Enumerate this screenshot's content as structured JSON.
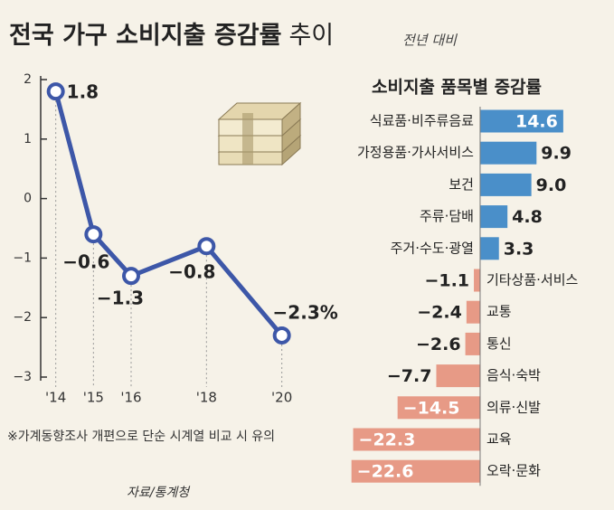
{
  "header": {
    "title": [
      "전국 가구 소비지출 증감률",
      "추이"
    ],
    "subtitle": "전년 대비"
  },
  "note": "※가계동향조사 개편으로 단순 시계열 비교 시 유의",
  "source": "자료/통계청",
  "chart_data": [
    {
      "type": "line",
      "x": [
        2014,
        2015,
        2016,
        2018,
        2020
      ],
      "xlim": [
        2013.6,
        2020.8
      ],
      "xticks": [
        {
          "value": 2014,
          "label": "'14"
        },
        {
          "value": 2015,
          "label": "'15"
        },
        {
          "value": 2016,
          "label": "'16"
        },
        {
          "value": 2018,
          "label": "'18"
        },
        {
          "value": 2020,
          "label": "'20"
        }
      ],
      "ylim": [
        -3,
        2
      ],
      "yticks": [
        {
          "value": -3,
          "label": "−3"
        },
        {
          "value": -2,
          "label": "−2"
        },
        {
          "value": -1,
          "label": "−1"
        },
        0,
        1,
        2
      ],
      "series": [
        {
          "color": "#3d57a8",
          "values": [
            1.8,
            -0.6,
            -1.3,
            -0.8,
            -2.3
          ],
          "value_labels": [
            "1.8",
            "−0.6",
            "−1.3",
            "−0.8",
            "−2.3%"
          ]
        }
      ]
    },
    {
      "type": "hbar",
      "title": "소비지출 품목별 증감률",
      "categories": [
        "식료품·비주류음료",
        "가정용품·가사서비스",
        "보건",
        "주류·담배",
        "주거·수도·광열",
        "기타상품·서비스",
        "교통",
        "통신",
        "음식·숙박",
        "의류·신발",
        "교육",
        "오락·문화"
      ],
      "values": [
        14.6,
        9.9,
        9.0,
        4.8,
        3.3,
        -1.1,
        -2.4,
        -2.6,
        -7.7,
        -14.5,
        -22.3,
        -22.6
      ],
      "value_labels": [
        "14.6",
        "9.9",
        "9.0",
        "4.8",
        "3.3",
        "−1.1",
        "−2.4",
        "−2.6",
        "−7.7",
        "−14.5",
        "−22.3",
        "−22.6"
      ],
      "xlim": [
        -23.5,
        17
      ],
      "colors": {
        "positive": "#4a8fc9",
        "negative": "#e79a86"
      }
    }
  ]
}
